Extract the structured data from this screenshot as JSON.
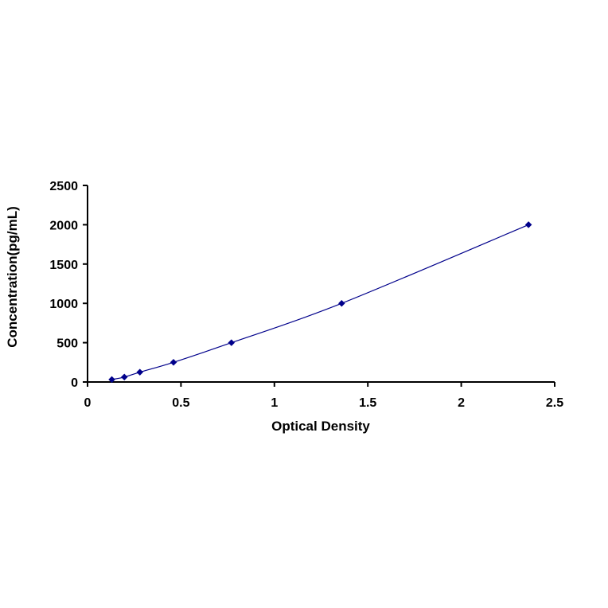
{
  "chart_data": {
    "type": "scatter",
    "xlabel": "Optical Density",
    "ylabel": "Concentration(pg/mL)",
    "xlim": [
      0,
      2.5
    ],
    "ylim": [
      0,
      2500
    ],
    "x_ticks": [
      "0",
      "0.5",
      "1",
      "1.5",
      "2",
      "2.5"
    ],
    "y_ticks": [
      "0",
      "500",
      "1000",
      "1500",
      "2000",
      "2500"
    ],
    "grid": false,
    "legend": "none",
    "series": [
      {
        "x": [
          0.13,
          0.197,
          0.28,
          0.46,
          0.77,
          1.36,
          2.36
        ],
        "y": [
          31.25,
          62.5,
          125,
          250,
          500,
          1000,
          2000
        ],
        "marker": "diamond",
        "trendline": "smooth"
      }
    ],
    "colors": {
      "series": "#00008B",
      "axis": "#000000"
    }
  }
}
